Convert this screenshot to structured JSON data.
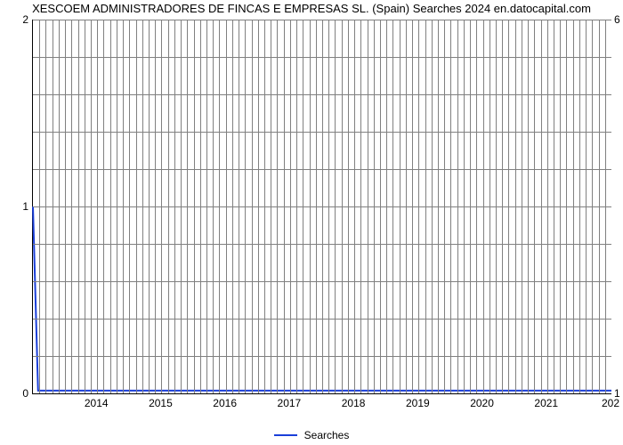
{
  "chart": {
    "type": "line",
    "title": "XESCOEM ADMINISTRADORES DE FINCAS E EMPRESAS SL. (Spain) Searches 2024 en.datocapital.com",
    "title_fontsize": 13,
    "title_color": "#000000",
    "background_color": "#ffffff",
    "grid_color": "#808080",
    "axis_line_color": "#000000",
    "tick_fontsize": 12,
    "xlim": [
      2013,
      2022
    ],
    "ylim_left": [
      0,
      2
    ],
    "ylim_right": [
      1,
      6
    ],
    "x_ticks": [
      2014,
      2015,
      2016,
      2017,
      2018,
      2019,
      2020,
      2021
    ],
    "x_tick_labels": [
      "2014",
      "2015",
      "2016",
      "2017",
      "2018",
      "2019",
      "2020",
      "2021"
    ],
    "x_label_right_edge": "202",
    "y_left_ticks": [
      0,
      1,
      2
    ],
    "y_left_labels": [
      "0",
      "1",
      "2"
    ],
    "y_left_minor_per_interval": 4,
    "y_right_ticks": [
      1,
      6
    ],
    "y_right_labels": [
      "1",
      "6"
    ],
    "vgrid_minor_count": 10,
    "series": [
      {
        "name": "Searches",
        "color": "#1a3fd9",
        "line_width": 2,
        "x": [
          2013.0,
          2013.08,
          2022.0
        ],
        "y": [
          1.0,
          0.015,
          0.015
        ]
      }
    ],
    "legend_label": "Searches",
    "legend_fontsize": 12
  }
}
